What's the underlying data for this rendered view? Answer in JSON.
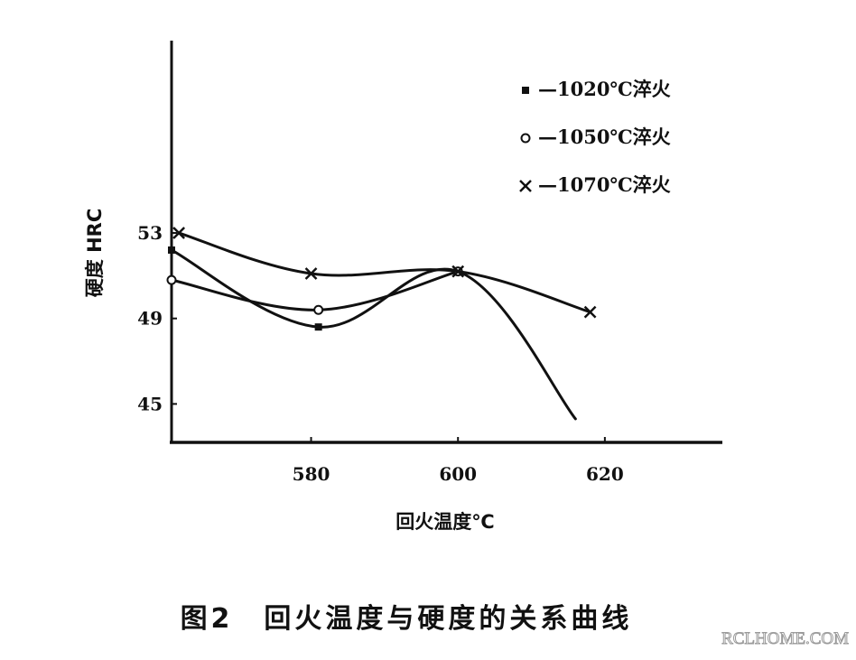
{
  "chart_data": {
    "type": "line",
    "title": "",
    "xlabel": "回火温度℃",
    "ylabel": "硬度 HRC",
    "xlim": [
      561,
      636
    ],
    "ylim": [
      43.2,
      62.0
    ],
    "xticks": [
      580,
      600,
      620
    ],
    "yticks": [
      45,
      49,
      53
    ],
    "grid": false,
    "legend_position": "top-right",
    "series": [
      {
        "name": "—1020℃淬火",
        "marker": "square",
        "x": [
          561,
          581,
          600,
          616
        ],
        "y": [
          52.2,
          48.6,
          51.2,
          44.3
        ]
      },
      {
        "name": "—1050℃淬火",
        "marker": "circle",
        "x": [
          561,
          581,
          600
        ],
        "y": [
          50.8,
          49.4,
          51.2
        ]
      },
      {
        "name": "—1070℃淬火",
        "marker": "cross",
        "x": [
          562,
          580,
          600,
          618
        ],
        "y": [
          53.0,
          51.1,
          51.2,
          49.3
        ]
      }
    ]
  },
  "caption": "图2　回火温度与硬度的关系曲线",
  "watermark": "RCLHOME.COM",
  "colors": {
    "ink": "#111111",
    "background": "#ffffff"
  }
}
